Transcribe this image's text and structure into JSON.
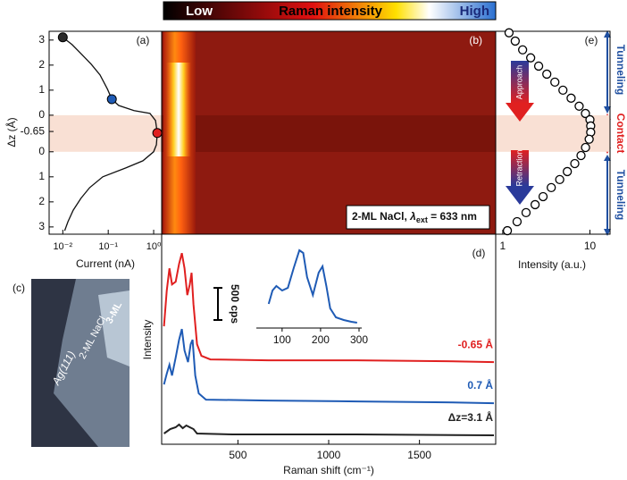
{
  "chart_data": [
    {
      "type": "line",
      "panel": "(a)",
      "ylabel": "Δz (Å)",
      "xlabel": "Current (nA)",
      "xscale": "log",
      "xlim": [
        0.005,
        1.5
      ],
      "xticks": [
        {
          "value": 0.01,
          "label": "10⁻²"
        },
        {
          "value": 0.1,
          "label": "10⁻¹"
        },
        {
          "value": 1,
          "label": "10⁰"
        }
      ],
      "ylim": [
        -4.75,
        3.35
      ],
      "yticks": [
        3,
        2,
        1,
        0,
        -0.65,
        {
          "value": -1.46,
          "label": "0"
        },
        {
          "value": -2.46,
          "label": "1"
        },
        {
          "value": -3.46,
          "label": "2"
        },
        {
          "value": -4.46,
          "label": "3"
        }
      ],
      "series": [
        {
          "color": "#111111",
          "x": [
            0.01,
            0.016,
            0.025,
            0.042,
            0.066,
            0.096,
            0.12,
            0.17,
            0.37,
            0.83,
            1.1,
            1.2,
            1.15,
            1.0,
            0.58,
            0.24,
            0.076,
            0.039,
            0.025,
            0.017,
            0.013,
            0.011
          ],
          "y": [
            3.11,
            2.82,
            2.46,
            2.04,
            1.61,
            1.04,
            0.64,
            0.39,
            0.18,
            0.07,
            -0.21,
            -0.71,
            -1.18,
            -1.46,
            -1.82,
            -2.11,
            -2.46,
            -2.89,
            -3.32,
            -3.79,
            -4.25,
            -4.61
          ]
        }
      ],
      "markers": [
        {
          "color": "#2a2a2a",
          "x": 0.01,
          "y": 3.11
        },
        {
          "color": "#1f5bb5",
          "x": 0.12,
          "y": 0.64
        },
        {
          "color": "#e02020",
          "x": 1.2,
          "y": -0.71
        }
      ]
    },
    {
      "type": "heatmap",
      "panel": "(b)",
      "colorbar": {
        "low": "Low",
        "title": "Raman intensity",
        "high": "High"
      },
      "annotation": [
        "2-ML NaCl, ",
        "λ",
        "ext",
        " = 633 nm"
      ]
    },
    {
      "type": "line",
      "panel": "(d)",
      "ylabel": "Intensity",
      "xlabel": "Raman shift (cm⁻¹)",
      "xlim": [
        80,
        1920
      ],
      "xticks": [
        500,
        1000,
        1500
      ],
      "ylim": [
        0,
        3270
      ],
      "scalebar": {
        "value": 500,
        "label": "500 cps"
      },
      "series": [
        {
          "name": "-0.65 Å",
          "color": "#e02020",
          "x": [
            93,
            108,
            123,
            137,
            157,
            176,
            191,
            206,
            221,
            235,
            245,
            255,
            275,
            299,
            348,
            667,
            1157,
            1647,
            1910
          ],
          "values": [
            1835,
            2391,
            2738,
            2488,
            2530,
            2808,
            2975,
            2738,
            2321,
            2488,
            2669,
            2182,
            1557,
            1376,
            1321,
            1307,
            1307,
            1293,
            1279
          ]
        },
        {
          "name": "0.7 Å",
          "color": "#1f5bb5",
          "x": [
            93,
            108,
            123,
            137,
            157,
            176,
            191,
            206,
            225,
            240,
            250,
            265,
            284,
            324,
            667,
            1157,
            1647,
            1910
          ],
          "values": [
            931,
            1098,
            1237,
            1070,
            1348,
            1626,
            1793,
            1460,
            1279,
            1557,
            1626,
            1070,
            792,
            695,
            681,
            667,
            653,
            639
          ]
        },
        {
          "name": "Δz=3.1 Å",
          "color": "#222222",
          "x": [
            93,
            127,
            157,
            176,
            196,
            216,
            235,
            255,
            275,
            471,
            1157,
            1910
          ],
          "values": [
            167,
            236,
            264,
            306,
            250,
            292,
            264,
            236,
            167,
            153,
            153,
            139
          ]
        }
      ],
      "inset": {
        "xlim": [
          33,
          307
        ],
        "xticks": [
          100,
          200,
          300
        ],
        "ylim": [
          0,
          100
        ],
        "color": "#1f5bb5",
        "x": [
          65,
          75,
          85,
          100,
          115,
          130,
          145,
          155,
          165,
          180,
          195,
          205,
          215,
          225,
          240,
          260,
          280,
          295
        ],
        "values": [
          30,
          45,
          50,
          45,
          48,
          70,
          90,
          87,
          60,
          40,
          65,
          72,
          50,
          25,
          15,
          12,
          10,
          9
        ]
      }
    },
    {
      "type": "scatter",
      "panel": "(e)",
      "xlabel": "Intensity (a.u.)",
      "xscale": "log",
      "xlim": [
        0.83,
        17
      ],
      "xticks": [
        1,
        10
      ],
      "ylim": [
        -4.75,
        3.35
      ],
      "x": [
        1.18,
        1.39,
        1.69,
        2.09,
        2.58,
        3.2,
        3.96,
        4.9,
        6.08,
        7.52,
        8.88,
        10,
        10.2,
        10.2,
        9.8,
        8.9,
        7.9,
        6.7,
        5.5,
        4.5,
        3.6,
        2.9,
        2.35,
        1.85,
        1.46,
        1.13
      ],
      "y": [
        3.29,
        2.96,
        2.61,
        2.29,
        1.96,
        1.64,
        1.32,
        1.0,
        0.68,
        0.36,
        0.07,
        -0.18,
        -0.43,
        -0.68,
        -0.96,
        -1.29,
        -1.61,
        -1.93,
        -2.25,
        -2.57,
        -2.89,
        -3.25,
        -3.57,
        -3.89,
        -4.25,
        -4.61
      ],
      "arrows": [
        "Approach",
        "Retraction"
      ],
      "regions": [
        "Tunneling",
        "Contact",
        "Tunneling"
      ]
    }
  ],
  "image": {
    "label": "(c)",
    "texts": [
      "Ag(111)",
      "2-ML NaCl",
      "3-ML"
    ]
  }
}
